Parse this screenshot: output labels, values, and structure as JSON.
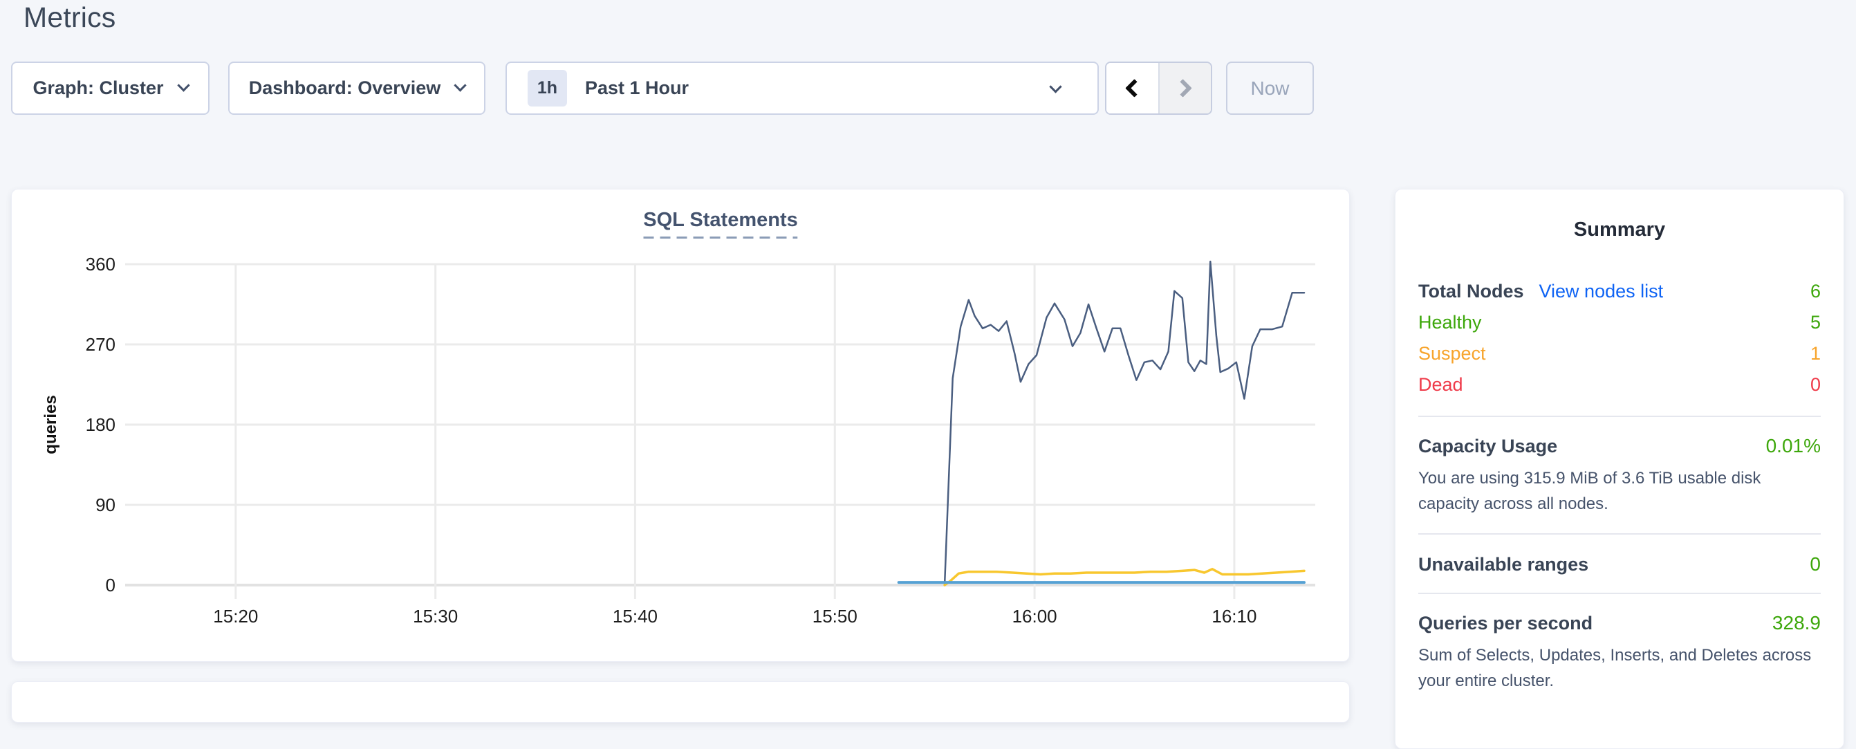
{
  "page": {
    "title": "Metrics",
    "background": "#f4f6fa"
  },
  "toolbar": {
    "graph_dropdown": {
      "label": "Graph: Cluster"
    },
    "dashboard_dropdown": {
      "label": "Dashboard: Overview"
    },
    "time_picker": {
      "badge": "1h",
      "label": "Past 1 Hour"
    },
    "now_button": {
      "label": "Now"
    }
  },
  "chart_data": {
    "type": "line",
    "title": "SQL Statements",
    "ylabel": "queries",
    "xlabel": "",
    "grid": true,
    "legend": "none",
    "x_unit": "minutes-since-midnight",
    "xlim": [
      914.5,
      973.5
    ],
    "ylim": [
      0,
      360
    ],
    "y_ticks": [
      0,
      90,
      180,
      270,
      360
    ],
    "x_ticks": [
      {
        "t": 920,
        "label": "15:20"
      },
      {
        "t": 930,
        "label": "15:30"
      },
      {
        "t": 940,
        "label": "15:40"
      },
      {
        "t": 950,
        "label": "15:50"
      },
      {
        "t": 960,
        "label": "16:00"
      },
      {
        "t": 970,
        "label": "16:10"
      }
    ],
    "series": [
      {
        "name": "navy",
        "color": "#4a5e80",
        "points": [
          [
            955.5,
            1
          ],
          [
            955.9,
            232
          ],
          [
            956.3,
            290
          ],
          [
            956.7,
            320
          ],
          [
            957.0,
            302
          ],
          [
            957.4,
            288
          ],
          [
            957.8,
            292
          ],
          [
            958.2,
            285
          ],
          [
            958.6,
            296
          ],
          [
            959.0,
            260
          ],
          [
            959.3,
            228
          ],
          [
            959.7,
            248
          ],
          [
            960.1,
            258
          ],
          [
            960.6,
            300
          ],
          [
            961.0,
            316
          ],
          [
            961.5,
            298
          ],
          [
            961.9,
            268
          ],
          [
            962.3,
            283
          ],
          [
            962.7,
            315
          ],
          [
            963.1,
            288
          ],
          [
            963.5,
            262
          ],
          [
            963.9,
            288
          ],
          [
            964.3,
            288
          ],
          [
            964.7,
            258
          ],
          [
            965.1,
            230
          ],
          [
            965.5,
            250
          ],
          [
            965.9,
            252
          ],
          [
            966.3,
            242
          ],
          [
            966.7,
            262
          ],
          [
            967.0,
            330
          ],
          [
            967.4,
            322
          ],
          [
            967.7,
            250
          ],
          [
            968.0,
            240
          ],
          [
            968.3,
            252
          ],
          [
            968.6,
            248
          ],
          [
            968.8,
            363
          ],
          [
            969.1,
            280
          ],
          [
            969.3,
            239
          ],
          [
            969.7,
            243
          ],
          [
            970.1,
            250
          ],
          [
            970.5,
            209
          ],
          [
            970.9,
            268
          ],
          [
            971.3,
            287
          ],
          [
            971.9,
            287
          ],
          [
            972.4,
            290
          ],
          [
            972.9,
            328
          ],
          [
            973.5,
            328
          ]
        ]
      },
      {
        "name": "yellow",
        "color": "#f8c72e",
        "points": [
          [
            955.5,
            0
          ],
          [
            955.8,
            5
          ],
          [
            956.2,
            13
          ],
          [
            956.7,
            15
          ],
          [
            957.4,
            15
          ],
          [
            958.1,
            15
          ],
          [
            958.9,
            14
          ],
          [
            959.6,
            13
          ],
          [
            960.3,
            12
          ],
          [
            961.0,
            13
          ],
          [
            961.8,
            13
          ],
          [
            962.6,
            14
          ],
          [
            963.4,
            14
          ],
          [
            964.2,
            14
          ],
          [
            965.0,
            14
          ],
          [
            965.8,
            15
          ],
          [
            966.6,
            15
          ],
          [
            967.4,
            16
          ],
          [
            968.0,
            17
          ],
          [
            968.5,
            14
          ],
          [
            968.9,
            18
          ],
          [
            969.4,
            12
          ],
          [
            970.0,
            12
          ],
          [
            970.7,
            12
          ],
          [
            971.4,
            13
          ],
          [
            972.1,
            14
          ],
          [
            972.8,
            15
          ],
          [
            973.5,
            16
          ]
        ]
      },
      {
        "name": "blue",
        "color": "#55a1d4",
        "points": [
          [
            953.2,
            3
          ],
          [
            973.5,
            3
          ]
        ]
      }
    ]
  },
  "summary": {
    "title": "Summary",
    "node_rows": [
      {
        "label": "Total Nodes",
        "link": "View nodes list",
        "value": "6"
      },
      {
        "label": "Healthy",
        "value": "5"
      },
      {
        "label": "Suspect",
        "value": "1"
      },
      {
        "label": "Dead",
        "value": "0"
      }
    ],
    "sections": [
      {
        "label": "Capacity Usage",
        "value": "0.01%",
        "description": "You are using 315.9 MiB of 3.6 TiB usable disk capacity across all nodes."
      },
      {
        "label": "Unavailable ranges",
        "value": "0",
        "description": ""
      },
      {
        "label": "Queries per second",
        "value": "328.9",
        "description": "Sum of Selects, Updates, Inserts, and Deletes across your entire cluster."
      }
    ]
  },
  "colors": {
    "healthy_green": "#3da70b",
    "suspect_orange": "#f7a42c",
    "dead_red": "#ef3b4a",
    "link_blue": "#0e63f4",
    "heading_slate": "#394455",
    "series_navy": "#4a5e80",
    "series_yellow": "#f8c72e",
    "series_blue": "#55a1d4"
  }
}
